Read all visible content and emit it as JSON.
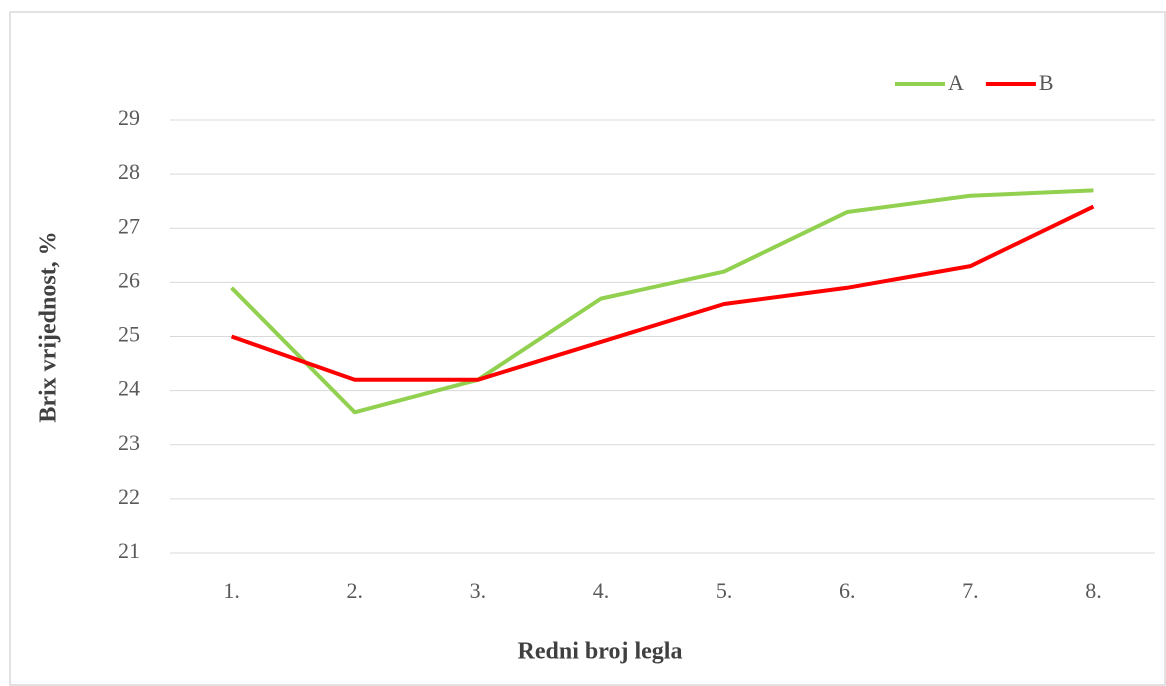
{
  "chart_data": {
    "type": "line",
    "xlabel": "Redni broj legla",
    "ylabel": "Brix vrijednost, %",
    "categories": [
      "1.",
      "2.",
      "3.",
      "4.",
      "5.",
      "6.",
      "7.",
      "8."
    ],
    "series": [
      {
        "name": "A",
        "color": "#92d050",
        "values": [
          25.9,
          23.6,
          24.2,
          25.7,
          26.2,
          27.3,
          27.6,
          27.7
        ]
      },
      {
        "name": "B",
        "color": "#ff0000",
        "values": [
          25.0,
          24.2,
          24.2,
          24.9,
          25.6,
          25.9,
          26.3,
          27.4
        ]
      }
    ],
    "ylim": [
      21,
      29
    ],
    "yticks": [
      21,
      22,
      23,
      24,
      25,
      26,
      27,
      28,
      29
    ],
    "grid": true,
    "legend": "top-right"
  }
}
